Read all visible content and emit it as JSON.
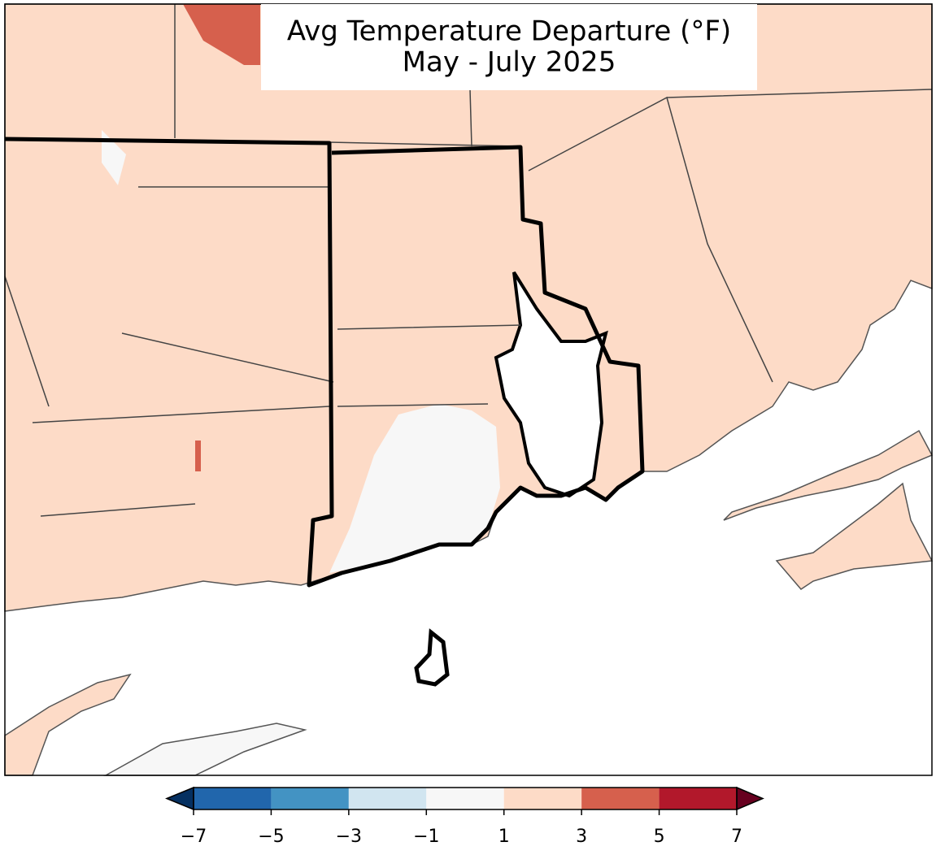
{
  "title": [
    "Avg Temperature Departure (°F)",
    "May - July 2025"
  ],
  "colorbar": {
    "lim": [
      -7,
      7
    ],
    "ticks": [
      {
        "value": -7,
        "label": "−7"
      },
      {
        "value": -5,
        "label": "−5"
      },
      {
        "value": -3,
        "label": "−3"
      },
      {
        "value": -1,
        "label": "−1"
      },
      1,
      3,
      5,
      7
    ],
    "colors": [
      "#2166ac",
      "#4393c3",
      "#d1e5f0",
      "#f7f7f7",
      "#fddbc7",
      "#d6604d",
      "#b2182b"
    ],
    "extend_colors": {
      "min": "#053061",
      "max": "#67001f"
    }
  }
}
